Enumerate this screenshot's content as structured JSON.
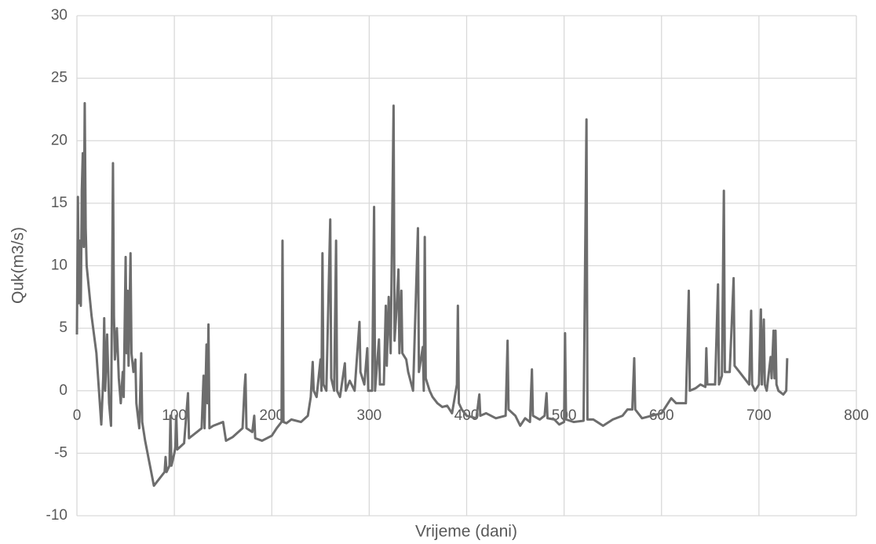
{
  "chart_data": {
    "type": "line",
    "x_label": "Vrijeme (dani)",
    "y_label": "Quk(m3/s)",
    "xlim": [
      0,
      800
    ],
    "xticks": [
      0,
      100,
      200,
      300,
      400,
      500,
      600,
      700,
      800
    ],
    "ylim": [
      -10,
      30
    ],
    "yticks": [
      -10,
      -5,
      0,
      5,
      10,
      15,
      20,
      25,
      30
    ],
    "grid": true,
    "series": [
      {
        "name": "Quk",
        "color": "#6d6d6d",
        "x": [
          0,
          1,
          2,
          3,
          4,
          5,
          6,
          7,
          8,
          9,
          10,
          15,
          20,
          25,
          27,
          28,
          29,
          31,
          33,
          35,
          37,
          38,
          39,
          41,
          43,
          45,
          47,
          48,
          50,
          51,
          52,
          53,
          55,
          56,
          58,
          60,
          61,
          64,
          66,
          67,
          70,
          75,
          79,
          85,
          90,
          91,
          92,
          95,
          96,
          97,
          100,
          101,
          102,
          103,
          110,
          114,
          115,
          120,
          128,
          130,
          131,
          133,
          134,
          135,
          136,
          140,
          150,
          153,
          160,
          170,
          172,
          173,
          174,
          180,
          182,
          183,
          190,
          200,
          205,
          210,
          211,
          212,
          215,
          220,
          230,
          237,
          240,
          242,
          243,
          246,
          250,
          251,
          252,
          253,
          256,
          260,
          261,
          264,
          266,
          267,
          270,
          275,
          276,
          280,
          285,
          290,
          291,
          295,
          298,
          299,
          303,
          305,
          306,
          310,
          311,
          315,
          317,
          318,
          320,
          322,
          325,
          326,
          328,
          330,
          331,
          333,
          334,
          338,
          340,
          345,
          350,
          351,
          355,
          356,
          357,
          358,
          362,
          365,
          370,
          375,
          380,
          385,
          390,
          391,
          392,
          395,
          400,
          410,
          413,
          414,
          420,
          430,
          440,
          442,
          443,
          450,
          455,
          460,
          465,
          467,
          468,
          475,
          480,
          482,
          483,
          490,
          495,
          500,
          501,
          502,
          510,
          520,
          523,
          524,
          530,
          540,
          550,
          560,
          565,
          570,
          572,
          573,
          580,
          590,
          600,
          610,
          615,
          620,
          625,
          628,
          629,
          635,
          640,
          645,
          646,
          647,
          655,
          658,
          659,
          662,
          664,
          665,
          670,
          674,
          675,
          680,
          685,
          690,
          692,
          693,
          696,
          700,
          702,
          703,
          705,
          706,
          708,
          712,
          713,
          715,
          716,
          717,
          718,
          720,
          725,
          728,
          729
        ],
        "values": [
          4.5,
          15.5,
          7,
          12,
          6.8,
          16,
          19,
          11.5,
          23,
          13,
          10,
          6,
          3,
          -2.7,
          1,
          5.8,
          0,
          4.5,
          -1,
          -2.8,
          18.2,
          6,
          2.5,
          5,
          1,
          -1,
          1.5,
          -0.5,
          10.7,
          3,
          8,
          2,
          11,
          3,
          1.5,
          2.5,
          -1,
          -3,
          3,
          -2.5,
          -4,
          -6,
          -7.6,
          -7,
          -6.5,
          -5.3,
          -6.5,
          -6,
          -2,
          -6,
          -5,
          -4.5,
          -2,
          -4.7,
          -4.2,
          -0.2,
          -3.8,
          -3.5,
          -3,
          1.2,
          -3,
          3.7,
          -1,
          5.3,
          -3,
          -2.8,
          -2.5,
          -4,
          -3.7,
          -3,
          0.2,
          1.3,
          -3,
          -3.3,
          -2,
          -3.8,
          -4,
          -3.6,
          -3,
          -2.5,
          12,
          -2.5,
          -2.6,
          -2.3,
          -2.5,
          -2,
          -0.5,
          2.3,
          0,
          -0.5,
          2.5,
          0,
          11,
          0.5,
          0,
          13.7,
          1,
          0,
          12,
          0,
          -0.5,
          2.2,
          0,
          0.8,
          0,
          5.5,
          1.5,
          0.5,
          3.4,
          0,
          0,
          14.7,
          0,
          4.1,
          0.5,
          0.5,
          6.8,
          2,
          7.5,
          3,
          22.8,
          4,
          6.5,
          9.7,
          3,
          8,
          3,
          2.5,
          1.5,
          0,
          13,
          1.5,
          3.5,
          0,
          12.3,
          1,
          0,
          -0.5,
          -1,
          -1.3,
          -1.2,
          -1.8,
          0.5,
          6.8,
          -1,
          -1.5,
          -2,
          -2.2,
          -0.3,
          -2,
          -1.8,
          -2.2,
          -2,
          4,
          -1.5,
          -2,
          -2.8,
          -2.2,
          -2.5,
          1.7,
          -2,
          -2.3,
          -2,
          -0.2,
          -2.2,
          -2.3,
          -2.7,
          -2.5,
          4.6,
          -2.3,
          -2.5,
          -2.4,
          21.7,
          -2.3,
          -2.3,
          -2.8,
          -2.3,
          -2,
          -1.5,
          -1.5,
          2.6,
          -1.5,
          -2.2,
          -2,
          -1.8,
          -0.6,
          -1,
          -1,
          -1,
          8,
          0,
          0.2,
          0.5,
          0.3,
          3.4,
          0.5,
          0.5,
          8.5,
          0.5,
          1.2,
          16,
          1.5,
          1.5,
          9,
          2,
          1.5,
          1,
          0.5,
          6.4,
          0.5,
          0,
          0.5,
          6.5,
          0.5,
          5.7,
          0.5,
          0,
          2.7,
          1,
          4.8,
          1,
          4.8,
          0.5,
          0,
          -0.3,
          0,
          2.6
        ]
      }
    ]
  }
}
